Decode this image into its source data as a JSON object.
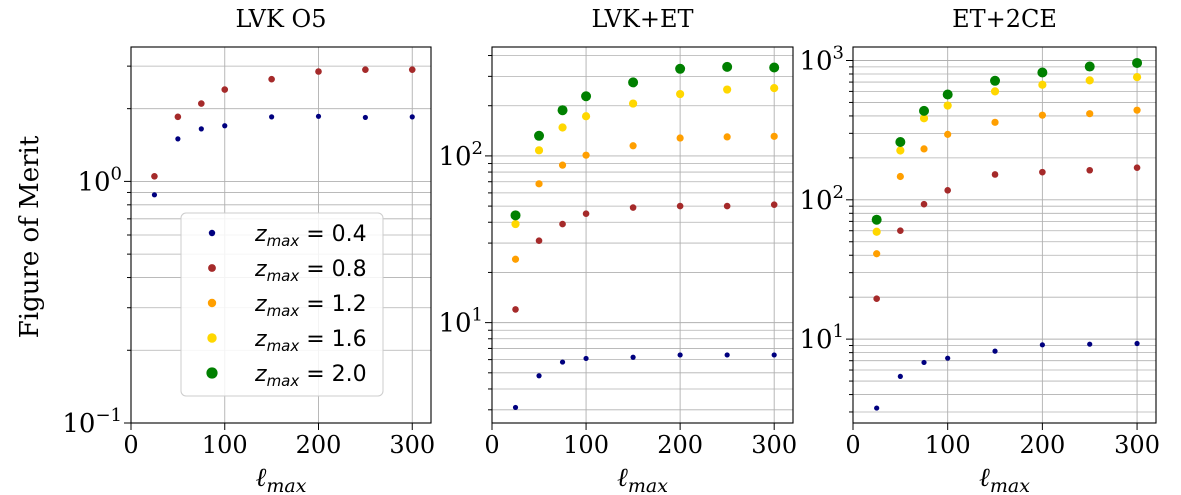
{
  "figure": {
    "ylabel": "Figure of Merit",
    "xlabel": "ℓ",
    "xlabel_sub": "max"
  },
  "legend": {
    "entries": [
      {
        "var": "z",
        "sub": "max",
        "text": " = 0.4"
      },
      {
        "var": "z",
        "sub": "max",
        "text": " = 0.8"
      },
      {
        "var": "z",
        "sub": "max",
        "text": " = 1.2"
      },
      {
        "var": "z",
        "sub": "max",
        "text": " = 1.6"
      },
      {
        "var": "z",
        "sub": "max",
        "text": " = 2.0"
      }
    ]
  },
  "chart_data": [
    {
      "type": "scatter",
      "title": "LVK O5",
      "xlabel": "ℓmax",
      "ylabel": "Figure of Merit",
      "x": [
        25,
        50,
        75,
        100,
        150,
        200,
        250,
        300
      ],
      "xlim": [
        0,
        320
      ],
      "xticks": [
        "0",
        "100",
        "200",
        "300"
      ],
      "yscale": "log",
      "ylim": [
        0.1,
        3.6
      ],
      "yticks": [
        {
          "base": "10",
          "exp": "−1"
        },
        {
          "base": "10",
          "exp": "0"
        }
      ],
      "grid": true,
      "legend_position": "lower-right",
      "series": [
        {
          "name": "zmax = 0.4",
          "color": "#00007f",
          "values": [
            0.88,
            1.5,
            1.65,
            1.7,
            1.85,
            1.86,
            1.84,
            1.85
          ]
        },
        {
          "name": "zmax = 0.8",
          "color": "#a52a2a",
          "values": [
            1.05,
            1.85,
            2.1,
            2.4,
            2.65,
            2.85,
            2.9,
            2.9
          ]
        }
      ]
    },
    {
      "type": "scatter",
      "title": "LVK+ET",
      "xlabel": "ℓmax",
      "x": [
        25,
        50,
        75,
        100,
        150,
        200,
        250,
        300
      ],
      "xlim": [
        0,
        320
      ],
      "xticks": [
        "0",
        "100",
        "200",
        "300"
      ],
      "yscale": "log",
      "ylim": [
        2.5,
        450
      ],
      "yticks": [
        {
          "base": "10",
          "exp": "1"
        },
        {
          "base": "10",
          "exp": "2"
        }
      ],
      "grid": true,
      "series": [
        {
          "name": "zmax = 0.4",
          "color": "#00007f",
          "values": [
            3.1,
            4.8,
            5.8,
            6.1,
            6.2,
            6.4,
            6.4,
            6.4
          ]
        },
        {
          "name": "zmax = 0.8",
          "color": "#a52a2a",
          "values": [
            12,
            31,
            39,
            45,
            49,
            50,
            50,
            51
          ]
        },
        {
          "name": "zmax = 1.2",
          "color": "#ff9f00",
          "values": [
            24,
            68,
            88,
            101,
            115,
            128,
            130,
            131
          ]
        },
        {
          "name": "zmax = 1.6",
          "color": "#ffd700",
          "values": [
            39,
            108,
            148,
            173,
            206,
            235,
            250,
            255
          ]
        },
        {
          "name": "zmax = 2.0",
          "color": "#008000",
          "values": [
            44,
            132,
            188,
            228,
            276,
            333,
            342,
            339
          ]
        }
      ]
    },
    {
      "type": "scatter",
      "title": "ET+2CE",
      "xlabel": "ℓmax",
      "x": [
        25,
        50,
        75,
        100,
        150,
        200,
        250,
        300
      ],
      "xlim": [
        0,
        320
      ],
      "xticks": [
        "0",
        "100",
        "200",
        "300"
      ],
      "yscale": "log",
      "ylim": [
        2.5,
        1250
      ],
      "yticks": [
        {
          "base": "10",
          "exp": "1"
        },
        {
          "base": "10",
          "exp": "2"
        },
        {
          "base": "10",
          "exp": "3"
        }
      ],
      "grid": true,
      "series": [
        {
          "name": "zmax = 0.4",
          "color": "#00007f",
          "values": [
            3.2,
            5.4,
            6.8,
            7.3,
            8.2,
            9.1,
            9.2,
            9.3
          ]
        },
        {
          "name": "zmax = 0.8",
          "color": "#a52a2a",
          "values": [
            19.5,
            60,
            93,
            117,
            152,
            158,
            163,
            170
          ]
        },
        {
          "name": "zmax = 1.2",
          "color": "#ff9f00",
          "values": [
            41,
            147,
            232,
            295,
            360,
            405,
            415,
            440
          ]
        },
        {
          "name": "zmax = 1.6",
          "color": "#ffd700",
          "values": [
            59,
            226,
            385,
            475,
            600,
            670,
            720,
            760
          ]
        },
        {
          "name": "zmax = 2.0",
          "color": "#008000",
          "values": [
            72,
            260,
            435,
            570,
            715,
            820,
            905,
            960
          ]
        }
      ]
    }
  ]
}
